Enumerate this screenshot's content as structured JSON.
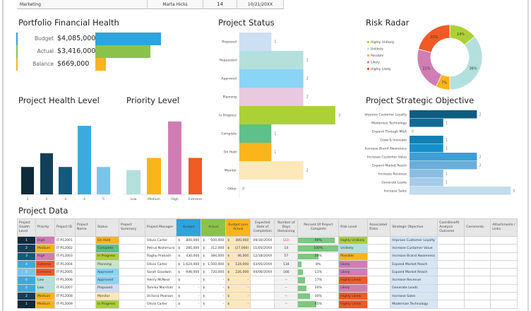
{
  "top_row": {
    "department": "Marketing",
    "manager": "Marta Hicks",
    "count": "14",
    "date": "10/21/20XX"
  },
  "financial": {
    "title": "Portfolio Financial Health",
    "items": [
      {
        "label": "Budget",
        "value": "$4,085,000",
        "amount": 4085000,
        "color": "#2ea3dc"
      },
      {
        "label": "Actual",
        "value": "$3,416,000",
        "amount": 3416000,
        "color": "#8bc34a"
      },
      {
        "label": "Balance",
        "value": "$669,000",
        "amount": 669000,
        "color": "#fbb41a"
      }
    ]
  },
  "chart_data": [
    {
      "id": "status",
      "type": "bar",
      "orientation": "horizontal",
      "title": "Project Status",
      "categories": [
        "Proposed",
        "Requested",
        "Approved",
        "Planning",
        "In Progress",
        "Complete",
        "On Hold",
        "Monitor",
        "Other"
      ],
      "values": [
        1,
        2,
        2,
        2,
        3,
        1,
        1,
        2,
        0
      ],
      "colors": [
        "#cddff3",
        "#b3e0dd",
        "#8ad4f6",
        "#e8c9e0",
        "#acd136",
        "#5ec08a",
        "#fbb41a",
        "#fde8bb",
        "#eeeeee"
      ],
      "data_labels": true
    },
    {
      "id": "risk",
      "type": "pie",
      "title": "Risk Radar",
      "donut": true,
      "categories": [
        "Highly Unlikely",
        "Unlikely",
        "Possible",
        "Likely",
        "Highly Likely"
      ],
      "values": [
        14,
        36,
        7,
        22,
        21
      ],
      "labels": [
        "14%",
        "36%",
        "7%",
        "22%",
        "21%"
      ],
      "colors": [
        "#acd136",
        "#b3e0dd",
        "#fbb41a",
        "#d17db4",
        "#f15a24"
      ],
      "legend": "left"
    },
    {
      "id": "health",
      "type": "bar",
      "title": "Project Health Level",
      "categories": [
        "1",
        "2",
        "3",
        "4",
        "5"
      ],
      "values": [
        2,
        3,
        2,
        5,
        2
      ],
      "colors": [
        "#0e2a3b",
        "#123f58",
        "#145a7c",
        "#3ea9dc",
        "#7bc4e8"
      ]
    },
    {
      "id": "priority",
      "type": "bar",
      "title": "Priority Level",
      "categories": [
        "Low",
        "Medium",
        "High",
        "Extreme"
      ],
      "values": [
        2,
        3,
        6,
        3
      ],
      "colors": [
        "#b3e0dd",
        "#fbb41a",
        "#d17db4",
        "#f15a24"
      ]
    },
    {
      "id": "strategic",
      "type": "bar",
      "orientation": "horizontal",
      "title": "Project Strategic Objective",
      "categories": [
        "Improve Customer Loyalty",
        "Modernize Technology",
        "Expand Through M&A",
        "Grow & Innovate",
        "Increase Brand Awareness",
        "Increase Customer Value",
        "Expand Market Reach",
        "Increase Revenue",
        "Generate Leads",
        "Increase Sales"
      ],
      "values": [
        2,
        1,
        0,
        1,
        1,
        2,
        2,
        1,
        1,
        3
      ],
      "colors": [
        "#0d5c82",
        "#0f6a97",
        "#1277a8",
        "#137fb3",
        "#1590cb",
        "#3d9fd5",
        "#6aaed9",
        "#8bbde2",
        "#a6cbe7",
        "#c2dbed"
      ],
      "data_labels": true
    }
  ],
  "table": {
    "title": "Project Data",
    "headers": [
      "Project Health Level",
      "Priority",
      "Project ID",
      "Project Name",
      "Status",
      "Project Summary",
      "Project Manager",
      "Budget",
      "Actual",
      "Budget Less Actual",
      "Expected Date of Completion",
      "Number of Days Remaining",
      "Percent Of Project Complete",
      "Risk Level",
      "Associated Risks",
      "Strategic Objective",
      "Cost-Benefit Analysis Outcome",
      "Comments",
      "Attachments / Links"
    ],
    "rows": [
      {
        "health": "1",
        "priority": "High",
        "id": "IT-P12001",
        "name": "",
        "status": "On Hold",
        "summary": "",
        "manager": "Olivia Carter",
        "budget": "800,000",
        "actual": "500,000",
        "bla": "300,000",
        "date": "09/30/20XX",
        "days": "(22)",
        "pct": 90,
        "pct_label": "90%",
        "risk": "Highly Unlikely",
        "assoc": "",
        "objective": "Improve Customer Loyalty"
      },
      {
        "health": "2",
        "priority": "Medium",
        "id": "IT-P12002",
        "name": "",
        "status": "Complete",
        "summary": "",
        "manager": "Petrus Nishimura",
        "budget": "285,000",
        "actual": "312,000",
        "bla": "(27,000)",
        "date": "11/05/20XX",
        "days": "14",
        "pct": 100,
        "pct_label": "100%",
        "risk": "Unlikely",
        "assoc": "",
        "objective": "Increase Customer Value"
      },
      {
        "health": "3",
        "priority": "High",
        "id": "IT-P12003",
        "name": "",
        "status": "In Progress",
        "summary": "",
        "manager": "Raghu Prakash",
        "budget": "430,000",
        "actual": "384,000",
        "bla": "46,000",
        "date": "12/18/20XX",
        "days": "57",
        "pct": 50,
        "pct_label": "50%",
        "risk": "Possible",
        "assoc": "",
        "objective": "Increase Brand Awareness"
      },
      {
        "health": "4",
        "priority": "Extreme",
        "id": "IT-P12004",
        "name": "",
        "status": "Planning",
        "summary": "",
        "manager": "Olivia Carter",
        "budget": "1,624,000",
        "actual": "1,500,000",
        "bla": "124,000",
        "date": "03/05/20XX",
        "days": "134",
        "pct": 8,
        "pct_label": "8%",
        "risk": "Likely",
        "assoc": "",
        "objective": "Expand Market Reach"
      },
      {
        "health": "5",
        "priority": "Extreme",
        "id": "IT-P12005",
        "name": "",
        "status": "Approved",
        "summary": "",
        "manager": "Sarah Goodwin",
        "budget": "946,000",
        "actual": "720,000",
        "bla": "226,000",
        "date": "04/06/20XX",
        "days": "166",
        "pct": 11,
        "pct_label": "11%",
        "risk": "Likely",
        "assoc": "",
        "objective": "Expand Market Reach"
      },
      {
        "health": "4",
        "priority": "Low",
        "id": "IT-P12006",
        "name": "",
        "status": "Approved",
        "summary": "",
        "manager": "Henry McNeal",
        "budget": "-",
        "actual": "-",
        "bla": "-",
        "date": "",
        "days": "--",
        "pct": 17,
        "pct_label": "17%",
        "risk": "Highly Likely",
        "assoc": "",
        "objective": "Increase Revenue"
      },
      {
        "health": "4",
        "priority": "Low",
        "id": "IT-P12007",
        "name": "",
        "status": "Proposed",
        "summary": "",
        "manager": "Tamika Marshall",
        "budget": "-",
        "actual": "-",
        "bla": "-",
        "date": "",
        "days": "--",
        "pct": 20,
        "pct_label": "20%",
        "risk": "Likely",
        "assoc": "",
        "objective": "Generate Leads"
      },
      {
        "health": "2",
        "priority": "Medium",
        "id": "IT-P12008",
        "name": "",
        "status": "Monitor",
        "summary": "",
        "manager": "Victoria Pearson",
        "budget": "-",
        "actual": "-",
        "bla": "-",
        "date": "",
        "days": "--",
        "pct": 30,
        "pct_label": "30%",
        "risk": "Highly Likely",
        "assoc": "",
        "objective": "Increase Sales"
      },
      {
        "health": "1",
        "priority": "Medium",
        "id": "IT-P12009",
        "name": "",
        "status": "In Progress",
        "summary": "",
        "manager": "Olivia Carter",
        "budget": "-",
        "actual": "-",
        "bla": "-",
        "date": "",
        "days": "--",
        "pct": 45,
        "pct_label": "45%",
        "risk": "Highly Likely",
        "assoc": "",
        "objective": "Modernize Technology"
      }
    ],
    "currency": "$",
    "colors": {
      "health": {
        "1": "#0e2a3b",
        "2": "#123f58",
        "3": "#145a7c",
        "4": "#3ea9dc",
        "5": "#7bc4e8"
      },
      "priority": {
        "Low": "#b3e0dd",
        "Medium": "#fbb41a",
        "High": "#d17db4",
        "Extreme": "#f15a24"
      },
      "status": {
        "Proposed": "#cddff3",
        "Requested": "#b3e0dd",
        "Approved": "#8ad4f6",
        "Planning": "#c8e6c9",
        "In Progress": "#acd136",
        "Complete": "#5ec08a",
        "On Hold": "#fbb41a",
        "Monitor": "#fde8bb"
      },
      "risk": {
        "Highly Unlikely": "#acd136",
        "Unlikely": "#b3e0dd",
        "Possible": "#fbb41a",
        "Likely": "#d17db4",
        "Highly Likely": "#f15a24"
      },
      "budget_header": "#2ea3dc",
      "actual_header": "#8bc34a",
      "bla_header": "#fbb41a",
      "bla_cell": "#fde8bb",
      "objective_cell": "#d6e6f5",
      "pct_bar": "#7dc77f",
      "negative": "#e53935"
    }
  }
}
